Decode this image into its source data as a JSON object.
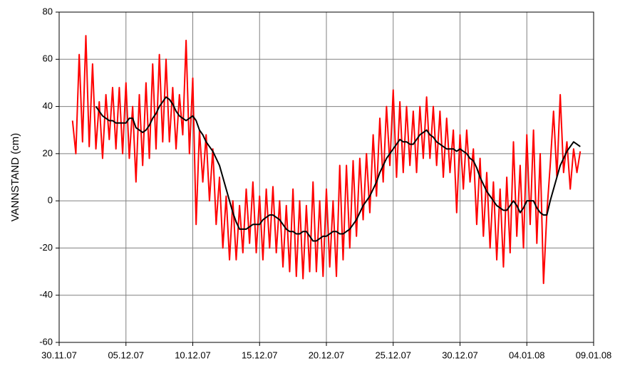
{
  "chart_data": {
    "type": "line",
    "y_label": "VANNSTAND (cm)",
    "ylim": [
      -60,
      80
    ],
    "yticks": [
      -60,
      -40,
      -20,
      0,
      20,
      40,
      60,
      80
    ],
    "xlim": [
      "2007-11-30T00:00",
      "2008-01-09T00:00"
    ],
    "xticks": [
      {
        "value": "2007-11-30T00:00",
        "label": "30.11.07"
      },
      {
        "value": "2007-12-05T00:00",
        "label": "05.12.07"
      },
      {
        "value": "2007-12-10T00:00",
        "label": "10.12.07"
      },
      {
        "value": "2007-12-15T00:00",
        "label": "15.12.07"
      },
      {
        "value": "2007-12-20T00:00",
        "label": "20.12.07"
      },
      {
        "value": "2007-12-25T00:00",
        "label": "25.12.07"
      },
      {
        "value": "2007-12-30T00:00",
        "label": "30.12.07"
      },
      {
        "value": "2008-01-04T00:00",
        "label": "04.01.08"
      },
      {
        "value": "2008-01-09T00:00",
        "label": "09.01.08"
      }
    ],
    "grid": true,
    "x": [
      "2007-12-01T00:00",
      "2007-12-01T06:00",
      "2007-12-01T12:00",
      "2007-12-01T18:00",
      "2007-12-02T00:00",
      "2007-12-02T06:00",
      "2007-12-02T12:00",
      "2007-12-02T18:00",
      "2007-12-03T00:00",
      "2007-12-03T06:00",
      "2007-12-03T12:00",
      "2007-12-03T18:00",
      "2007-12-04T00:00",
      "2007-12-04T06:00",
      "2007-12-04T12:00",
      "2007-12-04T18:00",
      "2007-12-05T00:00",
      "2007-12-05T06:00",
      "2007-12-05T12:00",
      "2007-12-05T18:00",
      "2007-12-06T00:00",
      "2007-12-06T06:00",
      "2007-12-06T12:00",
      "2007-12-06T18:00",
      "2007-12-07T00:00",
      "2007-12-07T06:00",
      "2007-12-07T12:00",
      "2007-12-07T18:00",
      "2007-12-08T00:00",
      "2007-12-08T06:00",
      "2007-12-08T12:00",
      "2007-12-08T18:00",
      "2007-12-09T00:00",
      "2007-12-09T06:00",
      "2007-12-09T12:00",
      "2007-12-09T18:00",
      "2007-12-10T00:00",
      "2007-12-10T06:00",
      "2007-12-10T12:00",
      "2007-12-10T18:00",
      "2007-12-11T00:00",
      "2007-12-11T06:00",
      "2007-12-11T12:00",
      "2007-12-11T18:00",
      "2007-12-12T00:00",
      "2007-12-12T06:00",
      "2007-12-12T12:00",
      "2007-12-12T18:00",
      "2007-12-13T00:00",
      "2007-12-13T06:00",
      "2007-12-13T12:00",
      "2007-12-13T18:00",
      "2007-12-14T00:00",
      "2007-12-14T06:00",
      "2007-12-14T12:00",
      "2007-12-14T18:00",
      "2007-12-15T00:00",
      "2007-12-15T06:00",
      "2007-12-15T12:00",
      "2007-12-15T18:00",
      "2007-12-16T00:00",
      "2007-12-16T06:00",
      "2007-12-16T12:00",
      "2007-12-16T18:00",
      "2007-12-17T00:00",
      "2007-12-17T06:00",
      "2007-12-17T12:00",
      "2007-12-17T18:00",
      "2007-12-18T00:00",
      "2007-12-18T06:00",
      "2007-12-18T12:00",
      "2007-12-18T18:00",
      "2007-12-19T00:00",
      "2007-12-19T06:00",
      "2007-12-19T12:00",
      "2007-12-19T18:00",
      "2007-12-20T00:00",
      "2007-12-20T06:00",
      "2007-12-20T12:00",
      "2007-12-20T18:00",
      "2007-12-21T00:00",
      "2007-12-21T06:00",
      "2007-12-21T12:00",
      "2007-12-21T18:00",
      "2007-12-22T00:00",
      "2007-12-22T06:00",
      "2007-12-22T12:00",
      "2007-12-22T18:00",
      "2007-12-23T00:00",
      "2007-12-23T06:00",
      "2007-12-23T12:00",
      "2007-12-23T18:00",
      "2007-12-24T00:00",
      "2007-12-24T06:00",
      "2007-12-24T12:00",
      "2007-12-24T18:00",
      "2007-12-25T00:00",
      "2007-12-25T06:00",
      "2007-12-25T12:00",
      "2007-12-25T18:00",
      "2007-12-26T00:00",
      "2007-12-26T06:00",
      "2007-12-26T12:00",
      "2007-12-26T18:00",
      "2007-12-27T00:00",
      "2007-12-27T06:00",
      "2007-12-27T12:00",
      "2007-12-27T18:00",
      "2007-12-28T00:00",
      "2007-12-28T06:00",
      "2007-12-28T12:00",
      "2007-12-28T18:00",
      "2007-12-29T00:00",
      "2007-12-29T06:00",
      "2007-12-29T12:00",
      "2007-12-29T18:00",
      "2007-12-30T00:00",
      "2007-12-30T06:00",
      "2007-12-30T12:00",
      "2007-12-30T18:00",
      "2007-12-31T00:00",
      "2007-12-31T06:00",
      "2007-12-31T12:00",
      "2007-12-31T18:00",
      "2008-01-01T00:00",
      "2008-01-01T06:00",
      "2008-01-01T12:00",
      "2008-01-01T18:00",
      "2008-01-02T00:00",
      "2008-01-02T06:00",
      "2008-01-02T12:00",
      "2008-01-02T18:00",
      "2008-01-03T00:00",
      "2008-01-03T06:00",
      "2008-01-03T12:00",
      "2008-01-03T18:00",
      "2008-01-04T00:00",
      "2008-01-04T06:00",
      "2008-01-04T12:00",
      "2008-01-04T18:00",
      "2008-01-05T00:00",
      "2008-01-05T06:00",
      "2008-01-05T12:00",
      "2008-01-05T18:00",
      "2008-01-06T00:00",
      "2008-01-06T06:00",
      "2008-01-06T12:00",
      "2008-01-06T18:00",
      "2008-01-07T00:00",
      "2008-01-07T06:00",
      "2008-01-07T12:00",
      "2008-01-07T18:00",
      "2008-01-08T00:00"
    ],
    "series": [
      {
        "color": "#ff0000",
        "values": [
          34,
          20,
          62,
          25,
          70,
          23,
          58,
          22,
          42,
          18,
          45,
          26,
          48,
          22,
          48,
          20,
          50,
          18,
          40,
          8,
          45,
          15,
          50,
          18,
          58,
          22,
          62,
          25,
          60,
          25,
          48,
          22,
          45,
          28,
          68,
          20,
          52,
          -10,
          30,
          8,
          28,
          0,
          22,
          -10,
          10,
          -20,
          2,
          -25,
          0,
          -25,
          -2,
          -22,
          5,
          -18,
          8,
          -22,
          2,
          -25,
          5,
          -20,
          6,
          -22,
          0,
          -28,
          -2,
          -30,
          5,
          -32,
          0,
          -33,
          -2,
          -30,
          8,
          -30,
          0,
          -32,
          5,
          -28,
          0,
          -32,
          15,
          -25,
          15,
          -20,
          17,
          -15,
          18,
          -8,
          20,
          -5,
          28,
          2,
          35,
          8,
          40,
          15,
          47,
          10,
          42,
          12,
          40,
          15,
          38,
          12,
          40,
          18,
          44,
          18,
          40,
          15,
          38,
          10,
          35,
          12,
          30,
          -5,
          28,
          5,
          30,
          8,
          22,
          -10,
          18,
          -15,
          12,
          -20,
          8,
          -25,
          5,
          -28,
          10,
          -22,
          25,
          -15,
          15,
          -20,
          28,
          -10,
          30,
          -18,
          20,
          -35,
          -5,
          15,
          38,
          10,
          45,
          12,
          25,
          5,
          22,
          12,
          21
        ]
      },
      {
        "color": "#000000",
        "values": [
          null,
          null,
          null,
          null,
          null,
          null,
          null,
          40,
          38,
          36,
          35,
          34,
          34,
          33,
          33,
          33,
          33,
          35,
          35,
          31,
          30,
          29,
          30,
          32,
          35,
          37,
          40,
          42,
          44,
          43,
          41,
          38,
          36,
          35,
          34,
          35,
          36,
          34,
          30,
          28,
          25,
          23,
          21,
          18,
          15,
          10,
          5,
          0,
          -5,
          -9,
          -12,
          -12,
          -12,
          -11,
          -10,
          -10,
          -10,
          -8,
          -7,
          -6,
          -6,
          -7,
          -8,
          -10,
          -12,
          -13,
          -13,
          -14,
          -14,
          -13,
          -13,
          -15,
          -17,
          -17,
          -16,
          -15,
          -15,
          -14,
          -13,
          -13,
          -14,
          -14,
          -13,
          -12,
          -10,
          -8,
          -5,
          -2,
          0,
          2,
          5,
          8,
          12,
          15,
          18,
          20,
          22,
          24,
          26,
          25,
          25,
          24,
          24,
          26,
          28,
          29,
          30,
          28,
          27,
          25,
          24,
          23,
          22,
          22,
          22,
          21,
          22,
          21,
          20,
          18,
          17,
          14,
          10,
          7,
          4,
          2,
          0,
          -2,
          -3,
          -4,
          -4,
          -2,
          0,
          -2,
          -5,
          -3,
          0,
          0,
          0,
          -3,
          -5,
          -6,
          -6,
          0,
          5,
          10,
          15,
          18,
          21,
          23,
          25,
          24,
          23
        ]
      }
    ]
  }
}
